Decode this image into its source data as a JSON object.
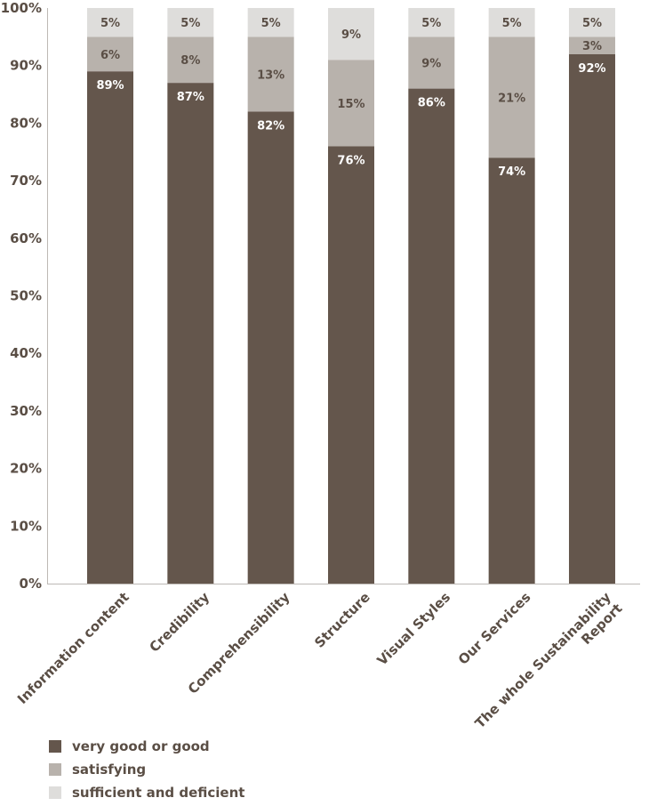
{
  "chart_data": {
    "type": "bar",
    "stacked": true,
    "categories": [
      "Information content",
      "Credibility",
      "Comprehensibility",
      "Structure",
      "Visual Styles",
      "Our Services",
      "The whole Sustainability Report"
    ],
    "series": [
      {
        "name": "very good or good",
        "color": "#64564c",
        "label_color": "#ffffff",
        "values": [
          89,
          87,
          82,
          76,
          86,
          74,
          92
        ]
      },
      {
        "name": "satisfying",
        "color": "#b8b2ac",
        "label_color": "#5a4e45",
        "values": [
          6,
          8,
          13,
          15,
          9,
          21,
          3
        ]
      },
      {
        "name": "sufficient and deficient",
        "color": "#dedddb",
        "label_color": "#5a4e45",
        "values": [
          5,
          5,
          5,
          9,
          5,
          5,
          5
        ]
      }
    ],
    "y_ticks": [
      "0%",
      "10%",
      "20%",
      "30%",
      "40%",
      "50%",
      "60%",
      "70%",
      "80%",
      "90%",
      "100%"
    ],
    "ylim": [
      0,
      100
    ],
    "ylabel": "",
    "xlabel": "",
    "title": "",
    "legend_position": "bottom-left",
    "grid": false
  }
}
